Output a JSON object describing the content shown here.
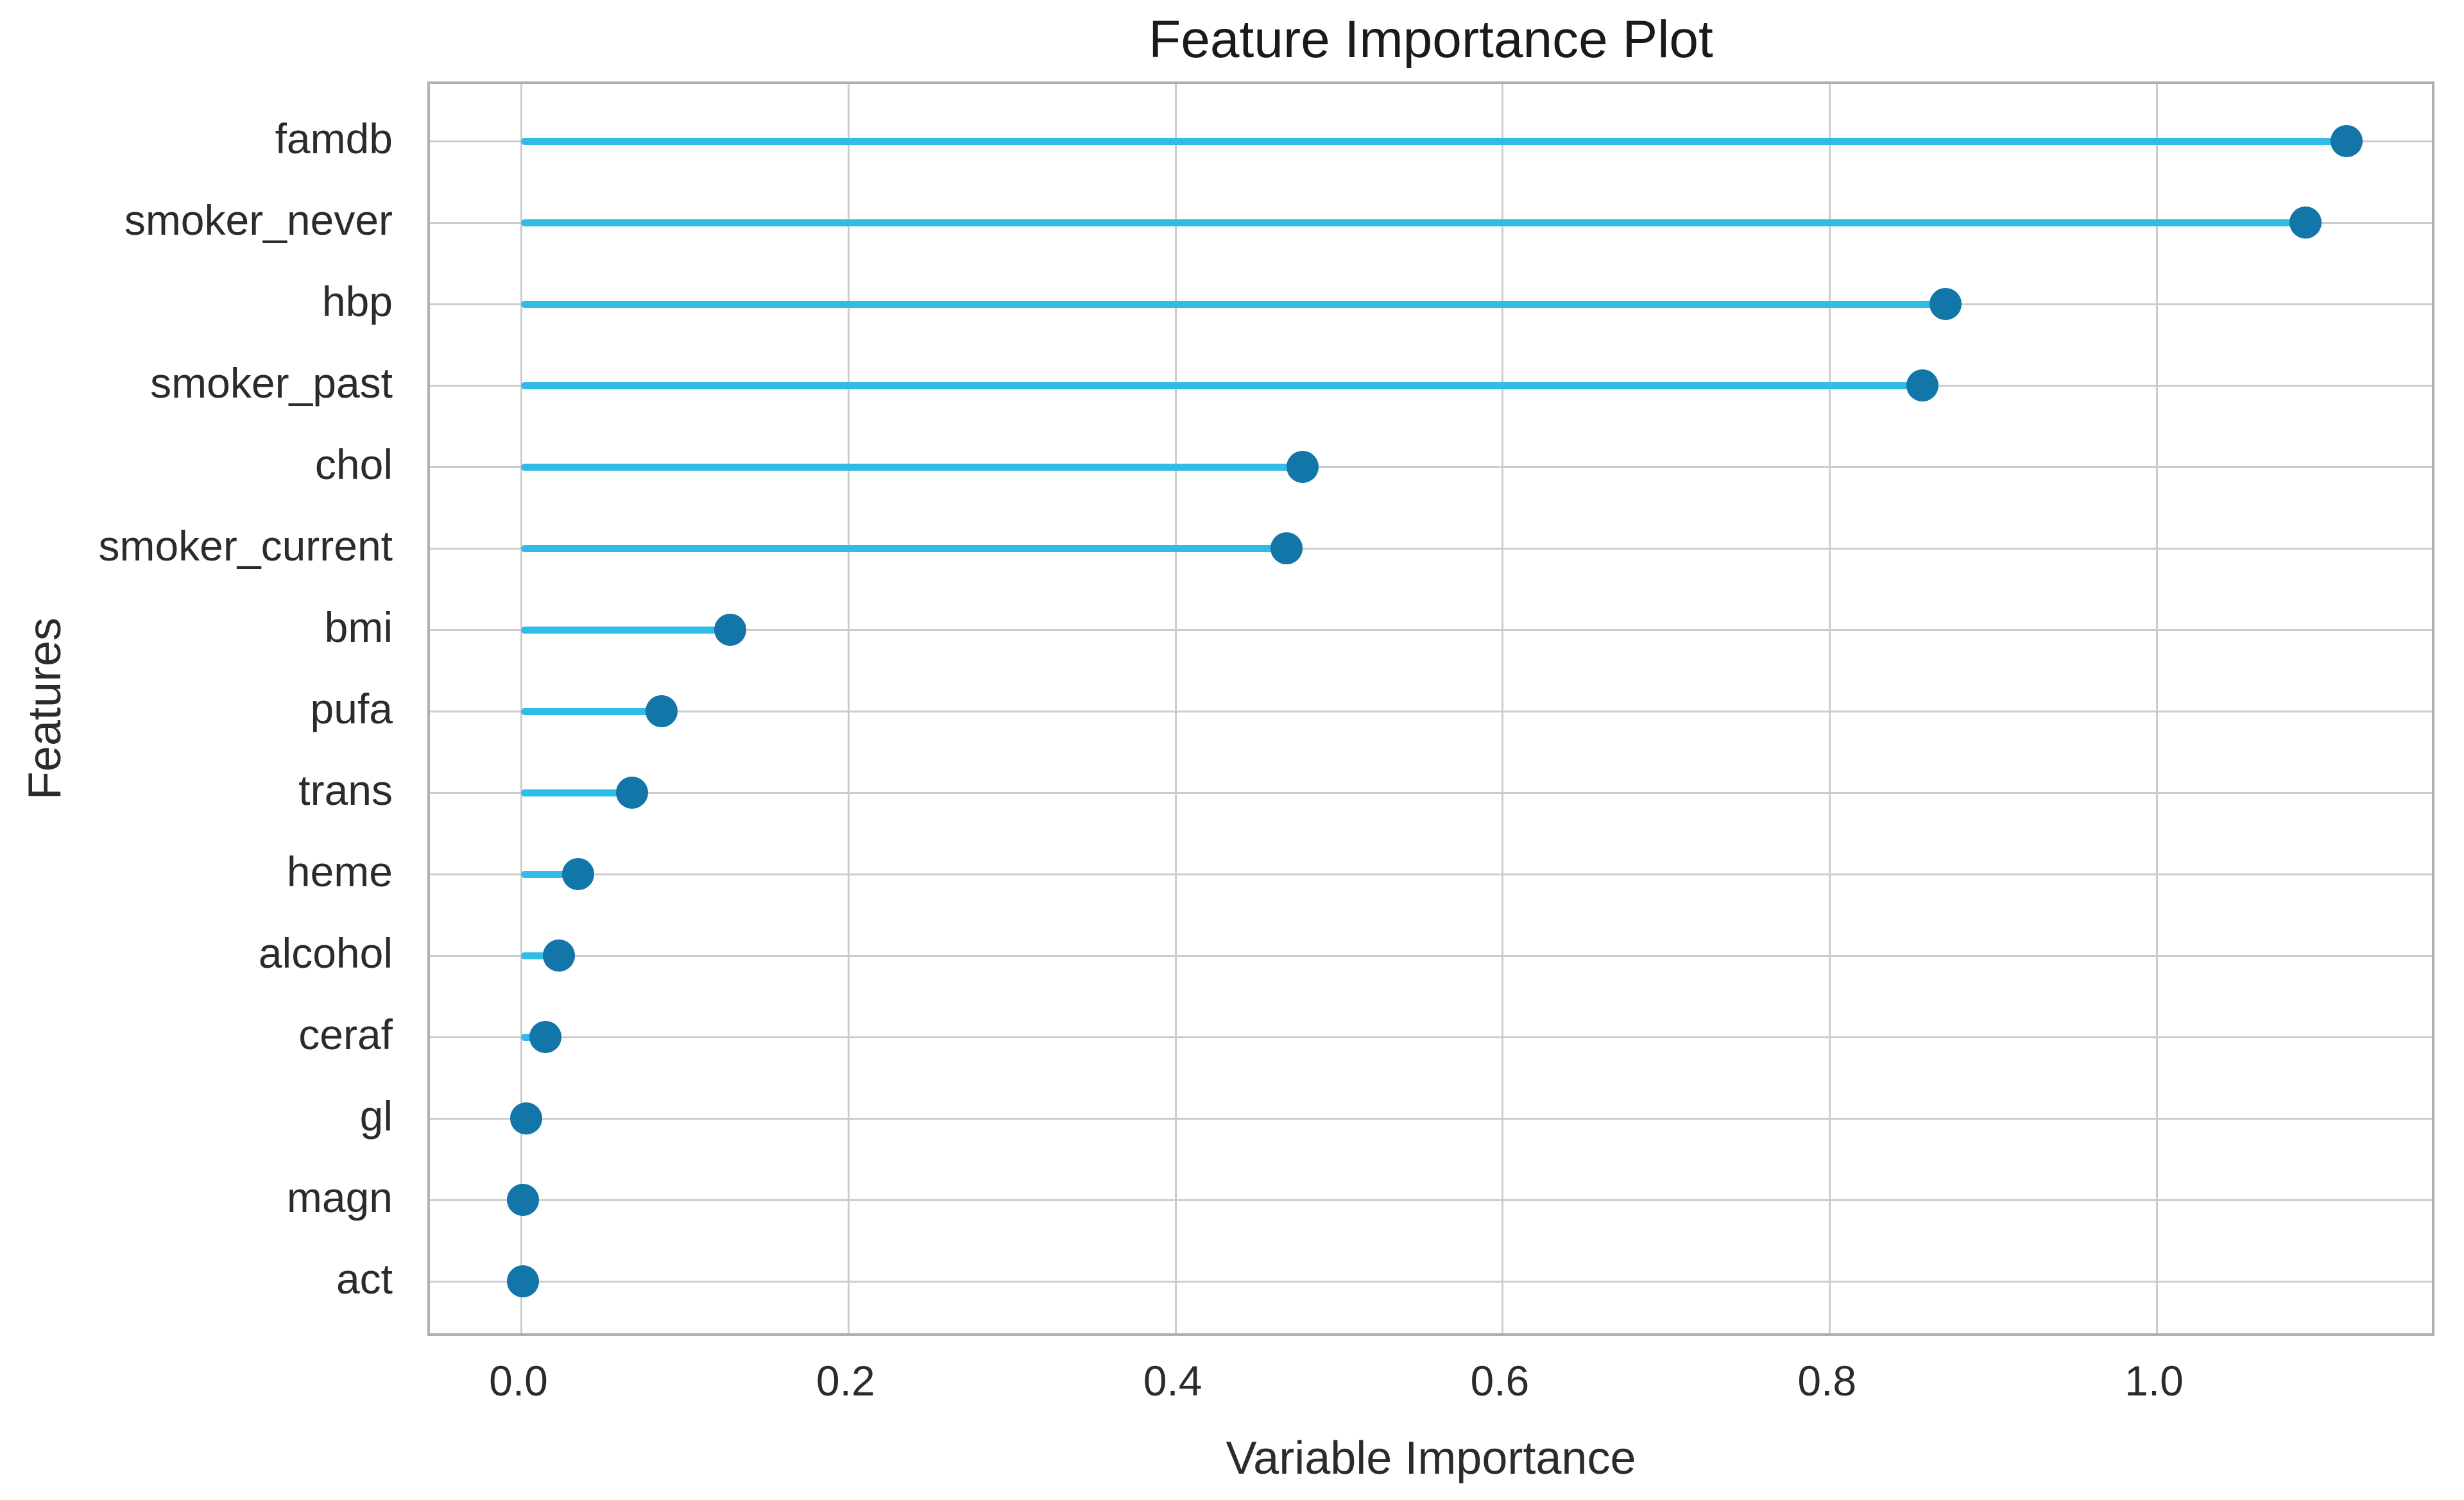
{
  "figure": {
    "title": "Feature Importance Plot",
    "xlabel": "Variable Importance",
    "ylabel": "Features"
  },
  "chart_data": {
    "type": "bar",
    "variant": "lollipop",
    "orientation": "horizontal",
    "title": "Feature Importance Plot",
    "xlabel": "Variable Importance",
    "ylabel": "Features",
    "categories": [
      "famdb",
      "smoker_never",
      "hbp",
      "smoker_past",
      "chol",
      "smoker_current",
      "bmi",
      "pufa",
      "trans",
      "heme",
      "alcohol",
      "ceraf",
      "gl",
      "magn",
      "act"
    ],
    "values": [
      1.116,
      1.091,
      0.871,
      0.857,
      0.478,
      0.468,
      0.128,
      0.086,
      0.068,
      0.035,
      0.023,
      0.015,
      0.003,
      0.001,
      0.001
    ],
    "xticks": [
      0.0,
      0.2,
      0.4,
      0.6,
      0.8,
      1.0
    ],
    "xtick_labels": [
      "0.0",
      "0.2",
      "0.4",
      "0.6",
      "0.8",
      "1.0"
    ],
    "xlim": [
      -0.056,
      1.171
    ],
    "grid": true,
    "legend": false,
    "colors": {
      "stem": "#31bce6",
      "dot": "#1276a8",
      "gridline": "#cccccc",
      "spine": "#b0b0b0",
      "text": "#2b2b2b",
      "background": "#ffffff"
    }
  }
}
